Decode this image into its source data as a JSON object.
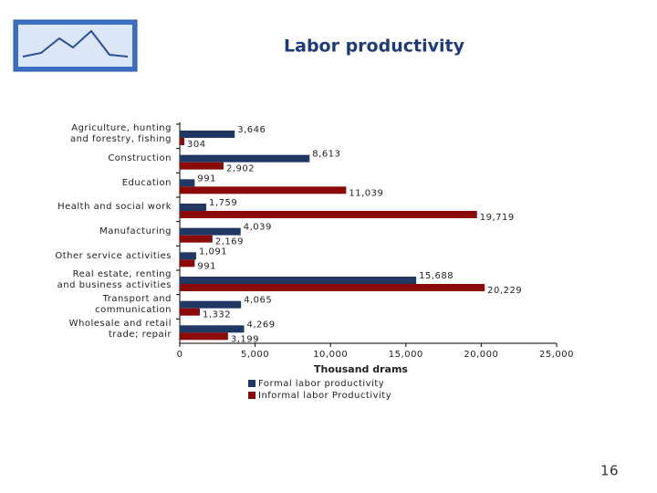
{
  "title": "Labor productivity",
  "page_number": "16",
  "chart_data": {
    "type": "bar",
    "orientation": "horizontal",
    "categories": [
      "Agriculture, hunting and forestry, fishing",
      "Construction",
      "Education",
      "Health and social work",
      "Manufacturing",
      "Other service activities",
      "Real estate, renting and business activities",
      "Transport and communication",
      "Wholesale and retail trade; repair"
    ],
    "series": [
      {
        "name": "Formal labor productivity",
        "color": "#1f3864",
        "values": [
          3646,
          8613,
          991,
          1759,
          4039,
          1091,
          15688,
          4065,
          4269
        ],
        "value_labels": [
          "3,646",
          "8,613",
          "991",
          "1,759",
          "4,039",
          "1,091",
          "15,688",
          "4,065",
          "4,269"
        ]
      },
      {
        "name": "Informal labor Productivity",
        "color": "#8b0a0a",
        "values": [
          304,
          2902,
          11039,
          19719,
          2169,
          991,
          20229,
          1332,
          3199
        ],
        "value_labels": [
          "304",
          "2,902",
          "11,039",
          "19,719",
          "2,169",
          "991",
          "20,229",
          "1,332",
          "3,199"
        ]
      }
    ],
    "xlim": [
      0,
      25000
    ],
    "xticks": [
      0,
      {
        "value": 5000,
        "label": "5,000"
      },
      {
        "value": 10000,
        "label": "10,000"
      },
      {
        "value": 15000,
        "label": "15,000"
      },
      {
        "value": 20000,
        "label": "20,000"
      },
      {
        "value": 25000,
        "label": "25,000"
      }
    ],
    "x_label": "Thousand drams",
    "legend": "bottom"
  }
}
